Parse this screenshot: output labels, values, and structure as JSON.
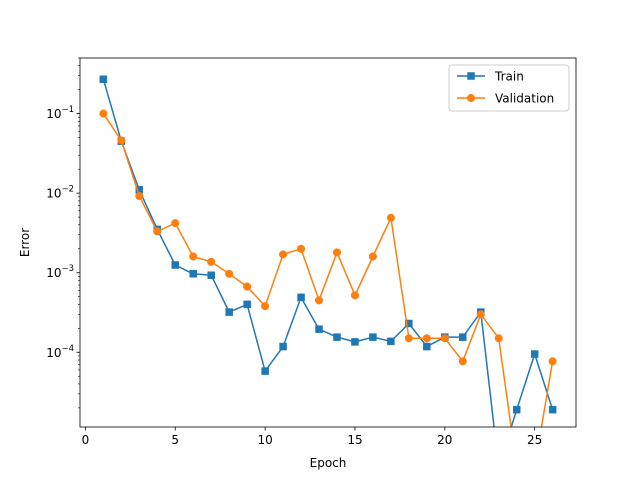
{
  "colors": {
    "train": "#1f77b4",
    "validation": "#ff7f0e"
  },
  "chart_data": {
    "type": "line",
    "xlabel": "Epoch",
    "ylabel": "Error",
    "xlim": [
      -0.3,
      27.3
    ],
    "ylim": [
      1.15e-05,
      0.5
    ],
    "yscale": "log",
    "grid": false,
    "legend_position": "top-right",
    "x_ticks": [
      0,
      5,
      10,
      15,
      20,
      25
    ],
    "y_ticks": [
      {
        "value": 0.0001,
        "base": "10",
        "exp": "−4"
      },
      {
        "value": 0.001,
        "base": "10",
        "exp": "−3"
      },
      {
        "value": 0.01,
        "base": "10",
        "exp": "−2"
      },
      {
        "value": 0.1,
        "base": "10",
        "exp": "−1"
      }
    ],
    "series": [
      {
        "name": "Train",
        "marker": "square",
        "x": [
          1,
          2,
          3,
          4,
          5,
          6,
          7,
          8,
          9,
          10,
          11,
          12,
          13,
          14,
          15,
          16,
          17,
          18,
          19,
          20,
          21,
          22,
          23,
          24,
          25,
          26
        ],
        "y": [
          0.27,
          0.045,
          0.011,
          0.0035,
          0.00125,
          0.00097,
          0.00093,
          0.00032,
          0.0004,
          5.8e-05,
          0.000118,
          0.00049,
          0.000195,
          0.000155,
          0.000135,
          0.000155,
          0.000137,
          0.00023,
          0.000118,
          0.000155,
          0.000155,
          0.00032,
          null,
          1.9e-05,
          9.5e-05,
          1.9e-05
        ]
      },
      {
        "name": "Validation",
        "marker": "circle",
        "x": [
          1,
          2,
          3,
          4,
          5,
          6,
          7,
          8,
          9,
          10,
          11,
          12,
          13,
          14,
          15,
          16,
          17,
          18,
          19,
          20,
          21,
          22,
          23,
          24,
          25,
          26
        ],
        "y": [
          0.1,
          0.046,
          0.0092,
          0.0033,
          0.0042,
          0.0016,
          0.00137,
          0.00097,
          0.00067,
          0.00038,
          0.0017,
          0.002,
          0.00045,
          0.0018,
          0.00052,
          0.0016,
          0.0049,
          0.00015,
          0.00015,
          0.00015,
          7.7e-05,
          0.0003,
          0.00015,
          null,
          null,
          7.7e-05
        ]
      }
    ]
  }
}
